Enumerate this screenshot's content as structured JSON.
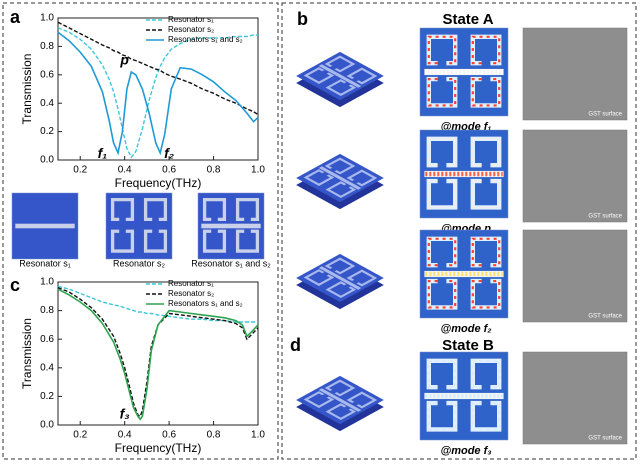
{
  "chart_data": [
    {
      "type": "line",
      "panel": "a",
      "xlabel": "Frequency(THz)",
      "ylabel": "Transmission",
      "xlim": [
        0.1,
        1.0
      ],
      "xticks": [
        0.2,
        0.4,
        0.6,
        0.8,
        {
          "value": 1.0,
          "label": "1.0"
        }
      ],
      "ylim": [
        0,
        1.0
      ],
      "yticks": [
        {
          "value": 0,
          "label": "0.0"
        },
        0.2,
        0.4,
        0.6,
        0.8,
        {
          "value": 1.0,
          "label": "1.0"
        }
      ],
      "legend": "upper right",
      "x": [
        0.1,
        0.15,
        0.2,
        0.25,
        0.3,
        0.33,
        0.35,
        0.37,
        0.39,
        0.41,
        0.43,
        0.45,
        0.48,
        0.51,
        0.54,
        0.56,
        0.58,
        0.61,
        0.65,
        0.7,
        0.75,
        0.8,
        0.85,
        0.9,
        0.95,
        0.98,
        1.0
      ],
      "series": [
        {
          "name": "Resonator s₁",
          "color": "#3cc8d8",
          "style": "dashed",
          "values": [
            0.93,
            0.9,
            0.85,
            0.78,
            0.67,
            0.57,
            0.48,
            0.36,
            0.22,
            0.08,
            0.02,
            0.06,
            0.22,
            0.42,
            0.58,
            0.66,
            0.72,
            0.78,
            0.82,
            0.85,
            0.86,
            0.86,
            0.86,
            0.87,
            0.87,
            0.88,
            0.88
          ]
        },
        {
          "name": "Resonator s₂",
          "color": "#111111",
          "style": "dashed",
          "values": [
            0.97,
            0.93,
            0.89,
            0.85,
            0.81,
            0.79,
            0.77,
            0.76,
            0.74,
            0.73,
            0.71,
            0.7,
            0.68,
            0.66,
            0.64,
            0.63,
            0.61,
            0.59,
            0.57,
            0.54,
            0.5,
            0.47,
            0.43,
            0.4,
            0.36,
            0.34,
            0.32
          ]
        },
        {
          "name": "Resonators s₁ and s₂",
          "color": "#1e9ad6",
          "style": "solid",
          "values": [
            0.9,
            0.84,
            0.76,
            0.66,
            0.48,
            0.28,
            0.12,
            0.05,
            0.2,
            0.5,
            0.62,
            0.6,
            0.5,
            0.33,
            0.12,
            0.05,
            0.18,
            0.5,
            0.65,
            0.64,
            0.6,
            0.55,
            0.48,
            0.42,
            0.33,
            0.27,
            0.3
          ]
        }
      ],
      "annotations": [
        {
          "text": "p",
          "x": 0.4,
          "y": 0.7
        },
        {
          "text": "f₁",
          "x": 0.3,
          "y": 0.04
        },
        {
          "text": "f₂",
          "x": 0.6,
          "y": 0.04
        }
      ]
    },
    {
      "type": "line",
      "panel": "c",
      "xlabel": "Frequency(THz)",
      "ylabel": "Transmission",
      "xlim": [
        0.1,
        1.0
      ],
      "xticks": [
        0.2,
        0.4,
        0.6,
        0.8,
        {
          "value": 1.0,
          "label": "1.0"
        }
      ],
      "ylim": [
        0,
        1.0
      ],
      "yticks": [
        {
          "value": 0,
          "label": "0.0"
        },
        0.2,
        0.4,
        0.6,
        0.8,
        {
          "value": 1.0,
          "label": "1.0"
        }
      ],
      "legend": "upper right",
      "x": [
        0.1,
        0.15,
        0.2,
        0.25,
        0.3,
        0.35,
        0.38,
        0.4,
        0.42,
        0.44,
        0.46,
        0.47,
        0.48,
        0.5,
        0.52,
        0.55,
        0.6,
        0.65,
        0.7,
        0.75,
        0.8,
        0.85,
        0.9,
        0.93,
        0.95,
        0.97,
        1.0
      ],
      "series": [
        {
          "name": "Resonator s₁",
          "color": "#3cc8d8",
          "style": "dashed",
          "values": [
            0.97,
            0.95,
            0.92,
            0.89,
            0.86,
            0.84,
            0.83,
            0.82,
            0.81,
            0.8,
            0.79,
            0.79,
            0.79,
            0.78,
            0.78,
            0.77,
            0.76,
            0.75,
            0.74,
            0.74,
            0.73,
            0.73,
            0.72,
            0.72,
            0.72,
            0.72,
            0.72
          ]
        },
        {
          "name": "Resonator s₂",
          "color": "#111111",
          "style": "dashed",
          "values": [
            0.96,
            0.93,
            0.88,
            0.82,
            0.74,
            0.62,
            0.5,
            0.4,
            0.28,
            0.15,
            0.07,
            0.06,
            0.1,
            0.3,
            0.55,
            0.7,
            0.78,
            0.77,
            0.76,
            0.75,
            0.74,
            0.73,
            0.71,
            0.68,
            0.6,
            0.63,
            0.68
          ]
        },
        {
          "name": "Resonators s₁ and s₂",
          "color": "#2ea44f",
          "style": "solid",
          "values": [
            0.95,
            0.91,
            0.86,
            0.8,
            0.71,
            0.58,
            0.46,
            0.36,
            0.24,
            0.12,
            0.06,
            0.04,
            0.06,
            0.25,
            0.52,
            0.7,
            0.8,
            0.79,
            0.78,
            0.77,
            0.76,
            0.75,
            0.73,
            0.7,
            0.62,
            0.65,
            0.7
          ]
        }
      ],
      "annotations": [
        {
          "text": "f₃",
          "x": 0.4,
          "y": 0.07
        }
      ]
    }
  ],
  "thumbnails": [
    "Resonator s₁",
    "Resonator s₂",
    "Resonator s₁ and s₂"
  ],
  "states": [
    {
      "label": "b",
      "title": "State A"
    },
    {
      "label": "d",
      "title": "State B"
    }
  ],
  "modes": [
    "@mode f₁",
    "@mode p",
    "@mode f₂",
    "@mode f₃"
  ],
  "gst_label": "GST surface"
}
